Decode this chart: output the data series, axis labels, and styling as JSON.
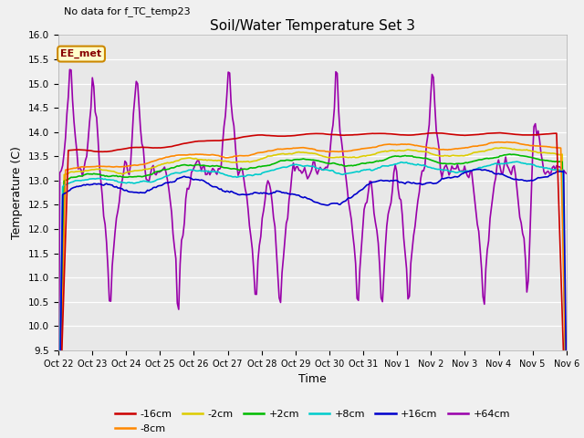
{
  "title": "Soil/Water Temperature Set 3",
  "xlabel": "Time",
  "ylabel": "Temperature (C)",
  "no_data_label": "No data for f_TC_temp23",
  "legend_label": "EE_met",
  "ylim": [
    9.5,
    16.0
  ],
  "yticks": [
    9.5,
    10.0,
    10.5,
    11.0,
    11.5,
    12.0,
    12.5,
    13.0,
    13.5,
    14.0,
    14.5,
    15.0,
    15.5,
    16.0
  ],
  "xtick_labels": [
    "Oct 22",
    "Oct 23",
    "Oct 24",
    "Oct 25",
    "Oct 26",
    "Oct 27",
    "Oct 28",
    "Oct 29",
    "Oct 30",
    "Oct 31",
    "Nov 1",
    "Nov 2",
    "Nov 3",
    "Nov 4",
    "Nov 5",
    "Nov 6"
  ],
  "series": {
    "m16cm": {
      "label": "-16cm",
      "color": "#cc0000",
      "lw": 1.2
    },
    "m8cm": {
      "label": "-8cm",
      "color": "#ff8800",
      "lw": 1.2
    },
    "m2cm": {
      "label": "-2cm",
      "color": "#ddcc00",
      "lw": 1.2
    },
    "p2cm": {
      "label": "+2cm",
      "color": "#00bb00",
      "lw": 1.2
    },
    "p8cm": {
      "label": "+8cm",
      "color": "#00cccc",
      "lw": 1.2
    },
    "p16cm": {
      "label": "+16cm",
      "color": "#0000cc",
      "lw": 1.2
    },
    "p64cm": {
      "label": "+64cm",
      "color": "#9900aa",
      "lw": 1.2
    }
  },
  "bg_color": "#e8e8e8",
  "fig_facecolor": "#f0f0f0"
}
